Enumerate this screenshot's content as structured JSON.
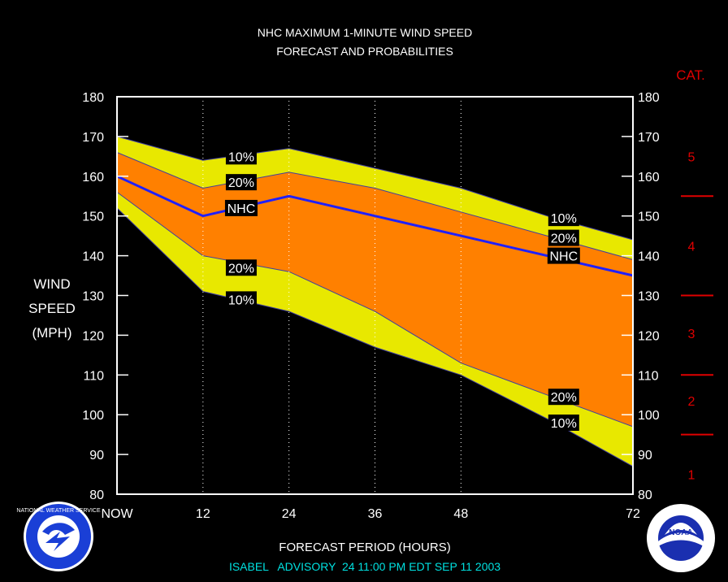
{
  "chart_data": {
    "type": "area",
    "title": "NHC MAXIMUM 1-MINUTE WIND SPEED",
    "subtitle": "FORECAST AND PROBABILITIES",
    "ylabel": [
      "WIND",
      "SPEED",
      "(MPH)"
    ],
    "xlabel": "FORECAST PERIOD (HOURS)",
    "footer": "ISABEL   ADVISORY  24 11:00 PM EDT SEP 11 2003",
    "x": [
      0,
      12,
      24,
      36,
      48,
      60,
      72
    ],
    "x_tick_labels": [
      "NOW",
      "12",
      "24",
      "36",
      "48",
      "72"
    ],
    "x_tick_values": [
      0,
      12,
      24,
      36,
      48,
      72
    ],
    "xlim": [
      0,
      72
    ],
    "ylim": [
      80,
      180
    ],
    "y_ticks": [
      80,
      90,
      100,
      110,
      120,
      130,
      140,
      150,
      160,
      170,
      180
    ],
    "grid": "vertical dotted",
    "series": [
      {
        "name": "10%",
        "role": "upper_outer",
        "values": [
          170,
          164,
          167,
          162,
          157,
          150,
          144
        ]
      },
      {
        "name": "20%",
        "role": "upper_inner",
        "values": [
          166,
          157,
          161,
          157,
          151,
          145,
          139
        ]
      },
      {
        "name": "NHC",
        "role": "forecast",
        "values": [
          160,
          150,
          155,
          150,
          145,
          140,
          135
        ]
      },
      {
        "name": "20%",
        "role": "lower_inner",
        "values": [
          156,
          140,
          136,
          126,
          113,
          105,
          97
        ]
      },
      {
        "name": "10%",
        "role": "lower_outer",
        "values": [
          152,
          131,
          126,
          117,
          110,
          99,
          87
        ]
      }
    ],
    "band_labels": [
      {
        "text": "10%",
        "x": 17,
        "y": 165
      },
      {
        "text": "20%",
        "x": 17,
        "y": 158.5
      },
      {
        "text": "NHC",
        "x": 17,
        "y": 152
      },
      {
        "text": "20%",
        "x": 17,
        "y": 137
      },
      {
        "text": "10%",
        "x": 17,
        "y": 129
      },
      {
        "text": "10%",
        "x": 62,
        "y": 149.5
      },
      {
        "text": "20%",
        "x": 62,
        "y": 144.5
      },
      {
        "text": "NHC",
        "x": 62,
        "y": 140
      },
      {
        "text": "20%",
        "x": 62,
        "y": 104.5
      },
      {
        "text": "10%",
        "x": 62,
        "y": 98
      }
    ],
    "category_scale": {
      "title": "CAT.",
      "labels": [
        {
          "text": "5",
          "y": 165
        },
        {
          "text": "4",
          "y": 142.5
        },
        {
          "text": "3",
          "y": 120.5
        },
        {
          "text": "2",
          "y": 103.5
        },
        {
          "text": "1",
          "y": 85
        }
      ],
      "boundaries": [
        155,
        130,
        110,
        95
      ]
    },
    "colors": {
      "outer_band": "#e8e800",
      "inner_band": "#ff8000",
      "forecast_line": "#2020ff",
      "axis": "#ffffff",
      "category": "#e00000",
      "footer": "#00e0e0"
    }
  },
  "logos": {
    "left": {
      "icon": "nws-logo-icon",
      "text": "NATIONAL WEATHER SERVICE"
    },
    "right": {
      "icon": "noaa-logo-icon",
      "text": "NOAA"
    }
  }
}
